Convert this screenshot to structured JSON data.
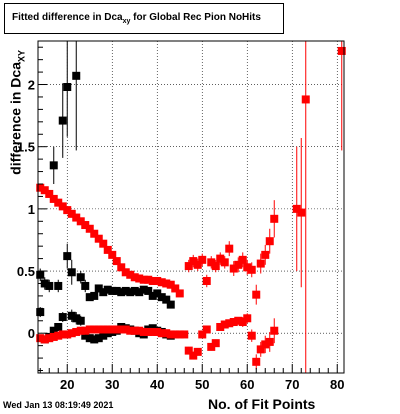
{
  "chart_data": {
    "type": "scatter",
    "title": {
      "prefix": "Fitted difference in Dca",
      "sub": "xy",
      "suffix": " for Global Rec Pion NoHits"
    },
    "ylabel": {
      "main": "difference in Dca",
      "sub": "XY"
    },
    "xlabel": "No. of Fit Points",
    "xlim": [
      13.5,
      81.5
    ],
    "ylim": [
      -0.32,
      2.35
    ],
    "x_ticks": [
      20,
      30,
      40,
      50,
      60,
      70,
      80
    ],
    "y_ticks": [
      0,
      0.5,
      1,
      1.5,
      2
    ],
    "x_tick_labels": [
      "20",
      "30",
      "40",
      "50",
      "60",
      "70",
      "80"
    ],
    "y_tick_labels": [
      "0",
      "0.5",
      "1",
      "1.5",
      "2"
    ],
    "grid": true,
    "timestamp": "Wed Jan 13 08:19:49 2021",
    "colors": {
      "black_series": "#000000",
      "red_series": "#ff0000"
    },
    "series": [
      {
        "color": "#000000",
        "marker": "square",
        "points": [
          {
            "x": 14,
            "y": 0.47,
            "e": 0.05
          },
          {
            "x": 15,
            "y": 0.4,
            "e": 0.05
          },
          {
            "x": 16,
            "y": 0.38,
            "e": 0.05
          },
          {
            "x": 17,
            "y": 1.35,
            "e": 0.15
          },
          {
            "x": 18,
            "y": 0.38,
            "e": 0.05
          },
          {
            "x": 19,
            "y": 1.71,
            "e": 0.3
          },
          {
            "x": 20,
            "y": 1.98,
            "e": 0.4
          },
          {
            "x": 21,
            "y": 0.49,
            "e": 0.1
          },
          {
            "x": 22,
            "y": 2.07,
            "e": 0.6
          },
          {
            "x": 23,
            "y": 0.45,
            "e": 0.05
          },
          {
            "x": 24,
            "y": 0.38,
            "e": 0.05
          },
          {
            "x": 25,
            "y": 0.29,
            "e": 0.03
          },
          {
            "x": 26,
            "y": 0.3,
            "e": 0.03
          },
          {
            "x": 27,
            "y": 0.36,
            "e": 0.03
          },
          {
            "x": 28,
            "y": 0.33,
            "e": 0.02
          },
          {
            "x": 29,
            "y": 0.35,
            "e": 0.02
          },
          {
            "x": 30,
            "y": 0.34,
            "e": 0.02
          },
          {
            "x": 31,
            "y": 0.34,
            "e": 0.02
          },
          {
            "x": 32,
            "y": 0.33,
            "e": 0.02
          },
          {
            "x": 33,
            "y": 0.34,
            "e": 0.02
          },
          {
            "x": 34,
            "y": 0.33,
            "e": 0.02
          },
          {
            "x": 35,
            "y": 0.34,
            "e": 0.02
          },
          {
            "x": 36,
            "y": 0.33,
            "e": 0.02
          },
          {
            "x": 37,
            "y": 0.35,
            "e": 0.02
          },
          {
            "x": 38,
            "y": 0.34,
            "e": 0.02
          },
          {
            "x": 39,
            "y": 0.3,
            "e": 0.02
          },
          {
            "x": 40,
            "y": 0.32,
            "e": 0.02
          },
          {
            "x": 41,
            "y": 0.29,
            "e": 0.02
          },
          {
            "x": 42,
            "y": 0.27,
            "e": 0.02
          },
          {
            "x": 43,
            "y": 0.23,
            "e": 0.02
          },
          {
            "x": 14,
            "y": 0.17,
            "e": 0.04
          },
          {
            "x": 15,
            "y": -0.05,
            "e": 0.03
          },
          {
            "x": 16,
            "y": -0.03,
            "e": 0.03
          },
          {
            "x": 17,
            "y": 0.02,
            "e": 0.03
          },
          {
            "x": 18,
            "y": 0.05,
            "e": 0.03
          },
          {
            "x": 19,
            "y": 0.13,
            "e": 0.04
          },
          {
            "x": 20,
            "y": 0.62,
            "e": 0.1
          },
          {
            "x": 21,
            "y": 0.14,
            "e": 0.05
          },
          {
            "x": 22,
            "y": 0.12,
            "e": 0.05
          },
          {
            "x": 23,
            "y": 0.1,
            "e": 0.04
          },
          {
            "x": 24,
            "y": -0.02,
            "e": 0.03
          },
          {
            "x": 25,
            "y": -0.04,
            "e": 0.03
          },
          {
            "x": 26,
            "y": -0.05,
            "e": 0.02
          },
          {
            "x": 27,
            "y": -0.04,
            "e": 0.02
          },
          {
            "x": 28,
            "y": -0.02,
            "e": 0.02
          },
          {
            "x": 29,
            "y": 0.0,
            "e": 0.02
          },
          {
            "x": 30,
            "y": 0.01,
            "e": 0.02
          },
          {
            "x": 31,
            "y": 0.02,
            "e": 0.02
          },
          {
            "x": 32,
            "y": 0.05,
            "e": 0.02
          },
          {
            "x": 33,
            "y": 0.04,
            "e": 0.02
          },
          {
            "x": 34,
            "y": 0.03,
            "e": 0.02
          },
          {
            "x": 35,
            "y": 0.02,
            "e": 0.02
          },
          {
            "x": 36,
            "y": 0.0,
            "e": 0.02
          },
          {
            "x": 37,
            "y": -0.01,
            "e": 0.02
          },
          {
            "x": 38,
            "y": 0.03,
            "e": 0.02
          },
          {
            "x": 39,
            "y": 0.04,
            "e": 0.02
          },
          {
            "x": 40,
            "y": 0.02,
            "e": 0.02
          },
          {
            "x": 41,
            "y": 0.01,
            "e": 0.02
          },
          {
            "x": 42,
            "y": -0.01,
            "e": 0.02
          },
          {
            "x": 43,
            "y": -0.02,
            "e": 0.02
          }
        ]
      },
      {
        "color": "#ff0000",
        "marker": "square",
        "points": [
          {
            "x": 14,
            "y": 1.17,
            "e": 0.02
          },
          {
            "x": 15,
            "y": 1.15,
            "e": 0.02
          },
          {
            "x": 16,
            "y": 1.12,
            "e": 0.02
          },
          {
            "x": 17,
            "y": 1.08,
            "e": 0.02
          },
          {
            "x": 18,
            "y": 1.05,
            "e": 0.02
          },
          {
            "x": 19,
            "y": 1.02,
            "e": 0.02
          },
          {
            "x": 20,
            "y": 0.99,
            "e": 0.02
          },
          {
            "x": 21,
            "y": 0.96,
            "e": 0.02
          },
          {
            "x": 22,
            "y": 0.93,
            "e": 0.02
          },
          {
            "x": 23,
            "y": 0.9,
            "e": 0.02
          },
          {
            "x": 24,
            "y": 0.87,
            "e": 0.02
          },
          {
            "x": 25,
            "y": 0.84,
            "e": 0.02
          },
          {
            "x": 26,
            "y": 0.8,
            "e": 0.02
          },
          {
            "x": 27,
            "y": 0.76,
            "e": 0.02
          },
          {
            "x": 28,
            "y": 0.72,
            "e": 0.02
          },
          {
            "x": 29,
            "y": 0.67,
            "e": 0.02
          },
          {
            "x": 30,
            "y": 0.63,
            "e": 0.02
          },
          {
            "x": 31,
            "y": 0.58,
            "e": 0.02
          },
          {
            "x": 32,
            "y": 0.53,
            "e": 0.02
          },
          {
            "x": 33,
            "y": 0.49,
            "e": 0.02
          },
          {
            "x": 34,
            "y": 0.47,
            "e": 0.02
          },
          {
            "x": 35,
            "y": 0.45,
            "e": 0.02
          },
          {
            "x": 36,
            "y": 0.44,
            "e": 0.02
          },
          {
            "x": 37,
            "y": 0.43,
            "e": 0.02
          },
          {
            "x": 38,
            "y": 0.43,
            "e": 0.02
          },
          {
            "x": 39,
            "y": 0.42,
            "e": 0.02
          },
          {
            "x": 40,
            "y": 0.42,
            "e": 0.02
          },
          {
            "x": 41,
            "y": 0.41,
            "e": 0.02
          },
          {
            "x": 42,
            "y": 0.4,
            "e": 0.02
          },
          {
            "x": 43,
            "y": 0.39,
            "e": 0.02
          },
          {
            "x": 44,
            "y": 0.36,
            "e": 0.02
          },
          {
            "x": 45,
            "y": 0.32,
            "e": 0.02
          },
          {
            "x": 47,
            "y": 0.54,
            "e": 0.05
          },
          {
            "x": 48,
            "y": 0.58,
            "e": 0.05
          },
          {
            "x": 49,
            "y": 0.55,
            "e": 0.05
          },
          {
            "x": 50,
            "y": 0.59,
            "e": 0.05
          },
          {
            "x": 51,
            "y": 0.42,
            "e": 0.05
          },
          {
            "x": 52,
            "y": 0.57,
            "e": 0.05
          },
          {
            "x": 53,
            "y": 0.54,
            "e": 0.05
          },
          {
            "x": 54,
            "y": 0.6,
            "e": 0.05
          },
          {
            "x": 55,
            "y": 0.57,
            "e": 0.05
          },
          {
            "x": 56,
            "y": 0.68,
            "e": 0.06
          },
          {
            "x": 57,
            "y": 0.52,
            "e": 0.06
          },
          {
            "x": 58,
            "y": 0.55,
            "e": 0.06
          },
          {
            "x": 59,
            "y": 0.59,
            "e": 0.06
          },
          {
            "x": 60,
            "y": 0.53,
            "e": 0.06
          },
          {
            "x": 61,
            "y": 0.51,
            "e": 0.06
          },
          {
            "x": 62,
            "y": 0.31,
            "e": 0.08
          },
          {
            "x": 63,
            "y": 0.56,
            "e": 0.08
          },
          {
            "x": 64,
            "y": 0.63,
            "e": 0.08
          },
          {
            "x": 65,
            "y": 0.74,
            "e": 0.1
          },
          {
            "x": 66,
            "y": 0.92,
            "e": 0.15
          },
          {
            "x": 71,
            "y": 1.0,
            "e": 0.5
          },
          {
            "x": 72,
            "y": 0.97,
            "e": 0.6
          },
          {
            "x": 73,
            "y": 1.88,
            "e": 2.5
          },
          {
            "x": 81,
            "y": 2.27,
            "e": 0.8
          },
          {
            "x": 14,
            "y": -0.04,
            "e": 0.01
          },
          {
            "x": 15,
            "y": -0.05,
            "e": 0.01
          },
          {
            "x": 16,
            "y": -0.04,
            "e": 0.01
          },
          {
            "x": 17,
            "y": -0.03,
            "e": 0.01
          },
          {
            "x": 18,
            "y": -0.02,
            "e": 0.01
          },
          {
            "x": 19,
            "y": -0.01,
            "e": 0.01
          },
          {
            "x": 20,
            "y": -0.01,
            "e": 0.01
          },
          {
            "x": 21,
            "y": 0.0,
            "e": 0.01
          },
          {
            "x": 22,
            "y": 0.01,
            "e": 0.01
          },
          {
            "x": 23,
            "y": 0.02,
            "e": 0.01
          },
          {
            "x": 24,
            "y": 0.02,
            "e": 0.01
          },
          {
            "x": 25,
            "y": 0.03,
            "e": 0.01
          },
          {
            "x": 26,
            "y": 0.03,
            "e": 0.01
          },
          {
            "x": 27,
            "y": 0.03,
            "e": 0.01
          },
          {
            "x": 28,
            "y": 0.03,
            "e": 0.01
          },
          {
            "x": 29,
            "y": 0.03,
            "e": 0.01
          },
          {
            "x": 30,
            "y": 0.03,
            "e": 0.01
          },
          {
            "x": 31,
            "y": 0.03,
            "e": 0.01
          },
          {
            "x": 32,
            "y": 0.03,
            "e": 0.01
          },
          {
            "x": 33,
            "y": 0.03,
            "e": 0.01
          },
          {
            "x": 34,
            "y": 0.02,
            "e": 0.01
          },
          {
            "x": 35,
            "y": 0.02,
            "e": 0.01
          },
          {
            "x": 36,
            "y": 0.02,
            "e": 0.01
          },
          {
            "x": 37,
            "y": 0.01,
            "e": 0.01
          },
          {
            "x": 38,
            "y": 0.01,
            "e": 0.01
          },
          {
            "x": 39,
            "y": 0.01,
            "e": 0.01
          },
          {
            "x": 40,
            "y": 0.01,
            "e": 0.01
          },
          {
            "x": 41,
            "y": 0.0,
            "e": 0.01
          },
          {
            "x": 42,
            "y": 0.0,
            "e": 0.01
          },
          {
            "x": 43,
            "y": -0.01,
            "e": 0.01
          },
          {
            "x": 44,
            "y": -0.01,
            "e": 0.01
          },
          {
            "x": 45,
            "y": -0.01,
            "e": 0.01
          },
          {
            "x": 46,
            "y": -0.01,
            "e": 0.01
          },
          {
            "x": 47,
            "y": -0.14,
            "e": 0.03
          },
          {
            "x": 48,
            "y": -0.18,
            "e": 0.03
          },
          {
            "x": 49,
            "y": -0.15,
            "e": 0.03
          },
          {
            "x": 50,
            "y": -0.01,
            "e": 0.03
          },
          {
            "x": 51,
            "y": 0.03,
            "e": 0.03
          },
          {
            "x": 52,
            "y": -0.11,
            "e": 0.03
          },
          {
            "x": 53,
            "y": -0.08,
            "e": 0.03
          },
          {
            "x": 54,
            "y": 0.05,
            "e": 0.03
          },
          {
            "x": 55,
            "y": 0.07,
            "e": 0.03
          },
          {
            "x": 56,
            "y": 0.08,
            "e": 0.03
          },
          {
            "x": 57,
            "y": 0.09,
            "e": 0.03
          },
          {
            "x": 58,
            "y": 0.1,
            "e": 0.03
          },
          {
            "x": 59,
            "y": 0.09,
            "e": 0.04
          },
          {
            "x": 60,
            "y": 0.12,
            "e": 0.04
          },
          {
            "x": 61,
            "y": -0.02,
            "e": 0.05
          },
          {
            "x": 62,
            "y": -0.23,
            "e": 0.06
          },
          {
            "x": 63,
            "y": -0.13,
            "e": 0.06
          },
          {
            "x": 64,
            "y": -0.09,
            "e": 0.07
          },
          {
            "x": 65,
            "y": -0.07,
            "e": 0.08
          },
          {
            "x": 66,
            "y": 0.02,
            "e": 0.1
          }
        ]
      }
    ]
  }
}
